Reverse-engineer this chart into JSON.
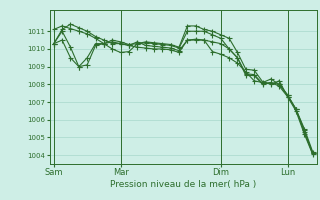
{
  "bg_color": "#ceeee6",
  "grid_color": "#a8d8cc",
  "line_color": "#2d6e2d",
  "marker_color": "#2d6e2d",
  "xlabel": "Pression niveau de la mer( hPa )",
  "ylim": [
    1003.5,
    1012.2
  ],
  "yticks": [
    1004,
    1005,
    1006,
    1007,
    1008,
    1009,
    1010,
    1011
  ],
  "day_labels": [
    "Sam",
    "Mar",
    "Dim",
    "Lun"
  ],
  "day_positions": [
    0,
    8,
    20,
    28
  ],
  "vline_positions": [
    0,
    8,
    20,
    28
  ],
  "series1": [
    1010.3,
    1011.1,
    1011.4,
    1011.2,
    1011.0,
    1010.7,
    1010.5,
    1010.3,
    1010.3,
    1010.2,
    1010.4,
    1010.2,
    1010.15,
    1010.1,
    1010.05,
    1009.9,
    1010.5,
    1010.55,
    1010.5,
    1009.85,
    1009.7,
    1009.5,
    1009.2,
    1008.7,
    1008.2,
    1008.1,
    1008.3,
    1008.0,
    1007.4,
    1006.6,
    1005.5,
    1004.2
  ],
  "series2": [
    1011.1,
    1011.3,
    1011.15,
    1011.0,
    1010.85,
    1010.6,
    1010.3,
    1010.0,
    1009.8,
    1009.85,
    1010.3,
    1010.4,
    1010.35,
    1010.3,
    1010.25,
    1010.1,
    1011.3,
    1011.3,
    1011.1,
    1011.0,
    1010.8,
    1010.6,
    1009.8,
    1008.85,
    1008.8,
    1008.15,
    1008.0,
    1008.2,
    1007.3,
    1006.6,
    1005.3,
    1004.1
  ],
  "series3": [
    1010.3,
    1010.5,
    1009.5,
    1009.0,
    1009.5,
    1010.3,
    1010.3,
    1010.5,
    1010.4,
    1010.25,
    1010.3,
    1010.35,
    1010.3,
    1010.25,
    1010.2,
    1010.05,
    1011.0,
    1011.0,
    1011.0,
    1010.8,
    1010.6,
    1010.0,
    1009.5,
    1008.6,
    1008.55,
    1008.05,
    1008.1,
    1008.0,
    1007.4,
    1006.6,
    1005.4,
    1004.1
  ],
  "series4": [
    1010.3,
    1011.0,
    1010.1,
    1009.0,
    1009.1,
    1010.2,
    1010.3,
    1010.4,
    1010.3,
    1010.2,
    1010.1,
    1010.05,
    1010.0,
    1010.0,
    1009.95,
    1009.8,
    1010.5,
    1010.5,
    1010.5,
    1010.4,
    1010.3,
    1010.0,
    1009.5,
    1008.5,
    1008.5,
    1008.0,
    1008.1,
    1007.9,
    1007.3,
    1006.5,
    1005.2,
    1004.05
  ]
}
